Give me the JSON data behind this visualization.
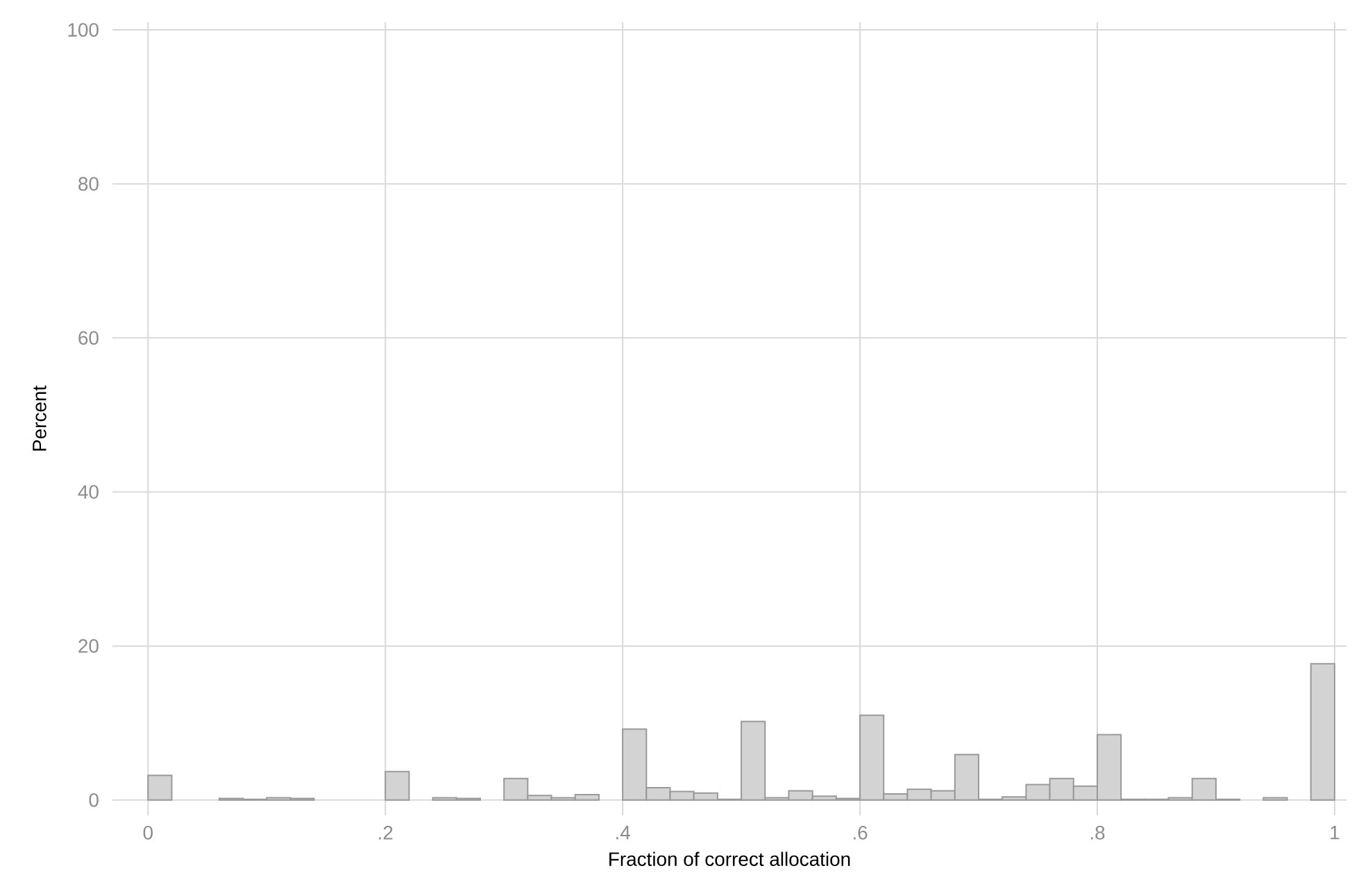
{
  "chart_data": {
    "type": "histogram",
    "xlabel": "Fraction of correct allocation",
    "ylabel": "Percent",
    "bins": [
      0,
      0.02,
      0.04,
      0.06,
      0.08,
      0.1,
      0.12,
      0.14,
      0.16,
      0.18,
      0.2,
      0.22,
      0.24,
      0.26,
      0.28,
      0.3,
      0.32,
      0.34,
      0.36,
      0.38,
      0.4,
      0.42,
      0.44,
      0.46,
      0.48,
      0.5,
      0.52,
      0.54,
      0.56,
      0.58,
      0.6,
      0.62,
      0.64,
      0.66,
      0.68,
      0.7,
      0.72,
      0.74,
      0.76,
      0.78,
      0.8,
      0.82,
      0.84,
      0.86,
      0.88,
      0.9,
      0.92,
      0.94,
      0.96,
      0.98,
      1
    ],
    "values": [
      3.2,
      0,
      0,
      0.2,
      0.1,
      0.3,
      0.2,
      0,
      0,
      0,
      3.7,
      0,
      0.3,
      0.2,
      0,
      2.8,
      0.6,
      0.3,
      0.7,
      0,
      9.2,
      1.6,
      1.1,
      0.9,
      0.1,
      10.2,
      0.3,
      1.2,
      0.5,
      0.2,
      11.0,
      0.8,
      1.4,
      1.2,
      5.9,
      0.1,
      0.4,
      2.0,
      2.8,
      1.8,
      8.5,
      0.1,
      0.1,
      0.3,
      2.8,
      0.1,
      0,
      0.3,
      0,
      17.7
    ],
    "color": "#d3d3d3",
    "xlim": [
      -0.03,
      1.01
    ],
    "ylim": [
      -2,
      101
    ],
    "xticks": [
      0,
      {
        "value": 0.2,
        "label": ".2"
      },
      {
        "value": 0.4,
        "label": ".4"
      },
      {
        "value": 0.6,
        "label": ".6"
      },
      {
        "value": 0.8,
        "label": ".8"
      },
      1
    ],
    "yticks": [
      0,
      20,
      40,
      60,
      80,
      100
    ],
    "grid": true
  }
}
